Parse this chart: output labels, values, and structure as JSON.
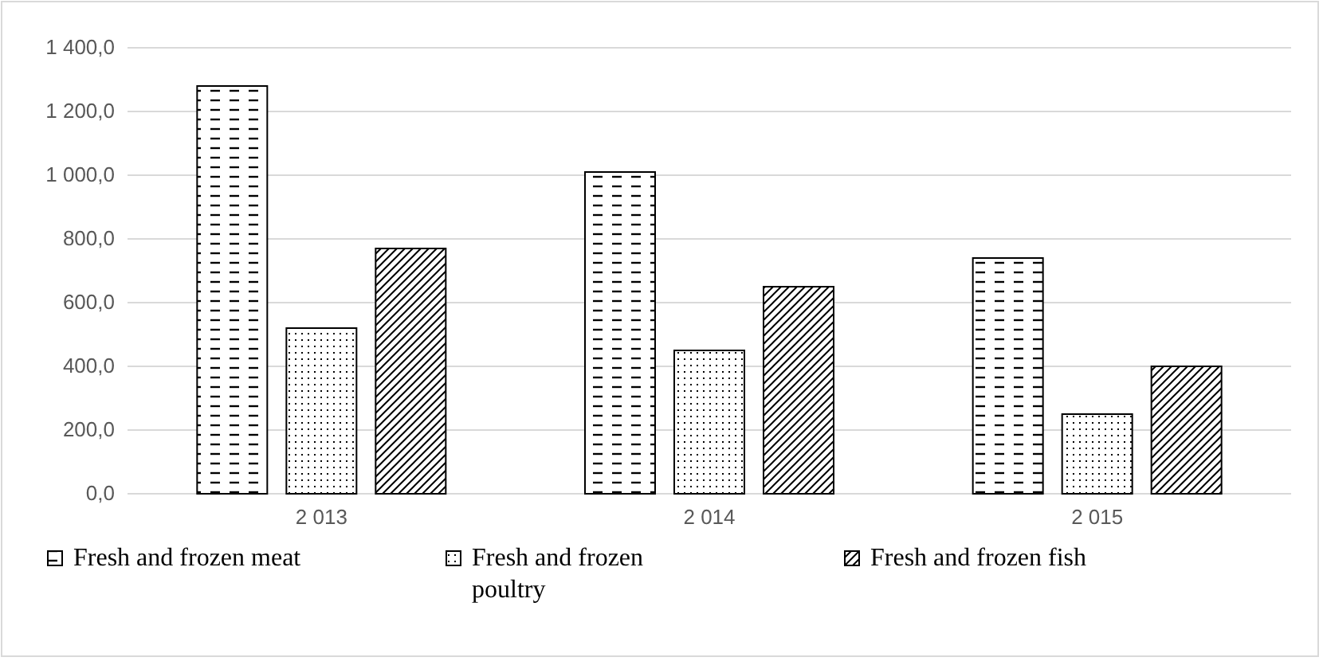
{
  "chart_data": {
    "type": "bar",
    "categories": [
      "2 013",
      "2 014",
      "2 015"
    ],
    "series": [
      {
        "name": "Fresh and frozen meat",
        "color": "#000000",
        "values": [
          1280,
          1010,
          740
        ]
      },
      {
        "name": "Fresh and frozen poultry",
        "color": "#000000",
        "values": [
          520,
          450,
          250
        ]
      },
      {
        "name": "Fresh and frozen fish",
        "color": "#000000",
        "values": [
          770,
          650,
          400
        ]
      }
    ],
    "ylim": [
      0,
      1400
    ],
    "yticks": [
      {
        "value": 0,
        "label": "0,0"
      },
      {
        "value": 200,
        "label": "200,0"
      },
      {
        "value": 400,
        "label": "400,0"
      },
      {
        "value": 600,
        "label": "600,0"
      },
      {
        "value": 800,
        "label": "800,0"
      },
      {
        "value": 1000,
        "label": "1 000,0"
      },
      {
        "value": 1200,
        "label": "1 200,0"
      },
      {
        "value": 1400,
        "label": "1 400,0"
      }
    ],
    "grid": "y",
    "legend": "bottom"
  }
}
